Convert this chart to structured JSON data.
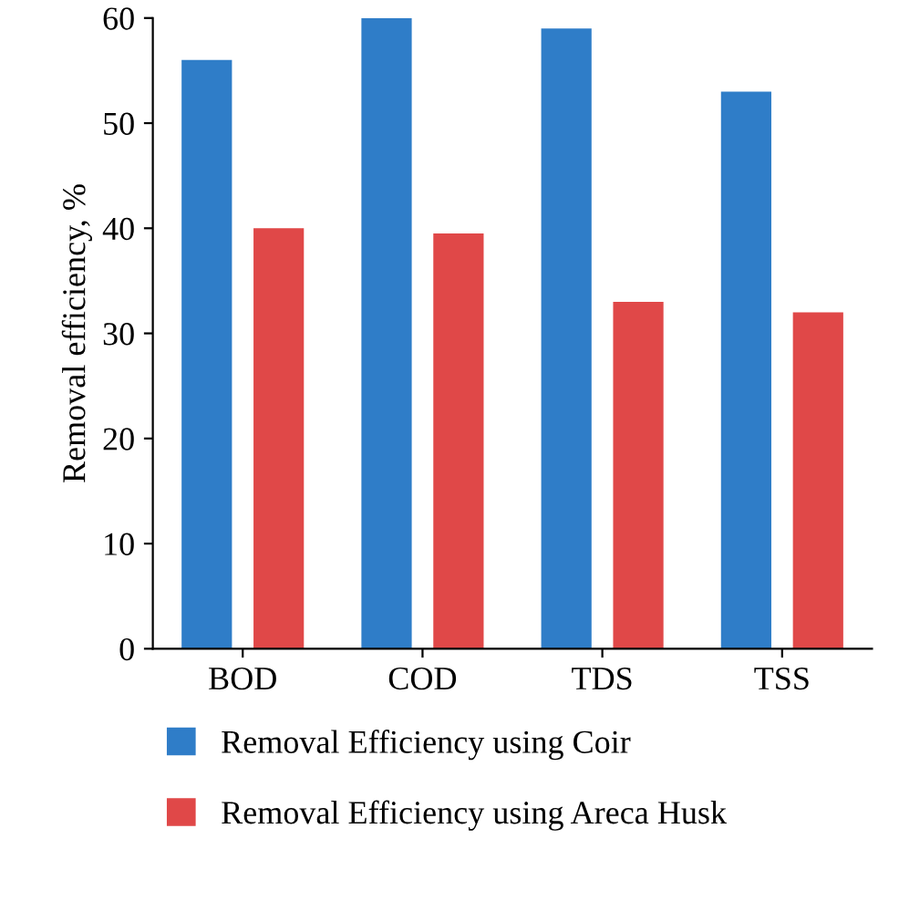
{
  "chart_data": {
    "type": "bar",
    "ylabel": "Removal efficiency, %",
    "categories": [
      "BOD",
      "COD",
      "TDS",
      "TSS"
    ],
    "series": [
      {
        "name": "Removal Efficiency using Coir",
        "color": "#2f7dc8",
        "values": [
          56,
          60,
          59,
          53
        ]
      },
      {
        "name": "Removal Efficiency using Areca Husk",
        "color": "#e04848",
        "values": [
          40,
          39.5,
          33,
          32
        ]
      }
    ],
    "ylim": [
      0,
      60
    ],
    "yticks": [
      0,
      10,
      20,
      30,
      40,
      50,
      60
    ],
    "grid": false,
    "legend": "bottom"
  }
}
